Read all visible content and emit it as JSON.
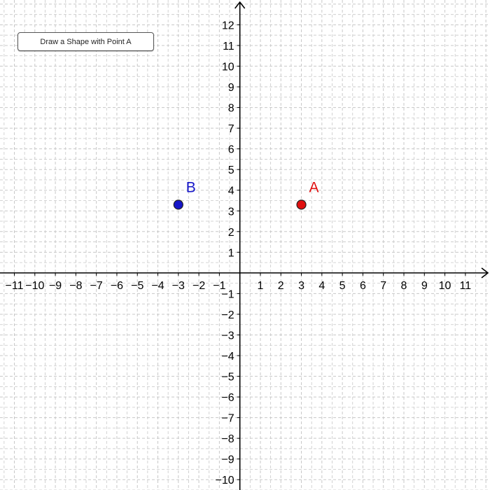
{
  "toolbar": {
    "button_label": "Draw a Shape with Point A"
  },
  "graph": {
    "x_range": [
      -11.7,
      12.2
    ],
    "y_range": [
      -10.5,
      13.2
    ],
    "x_ticks": [
      -11,
      -10,
      -9,
      -8,
      -7,
      -6,
      -5,
      -4,
      -3,
      -2,
      -1,
      1,
      2,
      3,
      4,
      5,
      6,
      7,
      8,
      9,
      10,
      11
    ],
    "y_ticks": [
      -10,
      -9,
      -8,
      -7,
      -6,
      -5,
      -4,
      -3,
      -2,
      -1,
      1,
      2,
      3,
      4,
      5,
      6,
      7,
      8,
      9,
      10,
      11,
      12
    ],
    "grid": "dashed",
    "grid_color": "#c8c8c8",
    "axis_color": "#000000"
  },
  "points": [
    {
      "label": "A",
      "x": 3,
      "y": 3.3,
      "color": "#e01010",
      "label_color": "#e01010"
    },
    {
      "label": "B",
      "x": -3,
      "y": 3.3,
      "color": "#1515c8",
      "label_color": "#1515c8"
    }
  ]
}
